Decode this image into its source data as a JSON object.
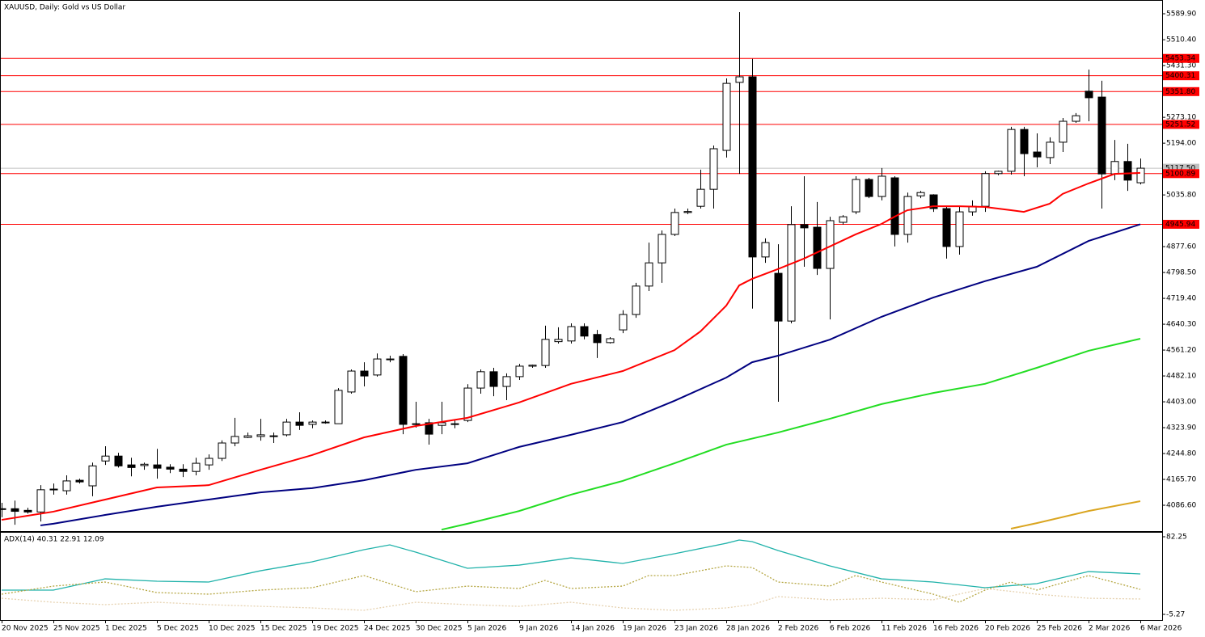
{
  "chart_data": [
    {
      "type": "candlestick",
      "title": "XAUUSD, Daily:  Gold vs US Dollar",
      "categories": [
        "20 Nov 2025",
        null,
        null,
        null,
        "25 Nov 2025",
        null,
        null,
        null,
        "1 Dec 2025",
        null,
        null,
        null,
        "5 Dec 2025",
        null,
        null,
        null,
        "10 Dec 2025",
        null,
        null,
        null,
        "15 Dec 2025",
        null,
        null,
        null,
        "19 Dec 2025",
        null,
        null,
        null,
        "24 Dec 2025",
        null,
        null,
        null,
        "30 Dec 2025",
        null,
        null,
        null,
        "5 Jan 2026",
        null,
        null,
        null,
        "9 Jan 2026",
        null,
        null,
        null,
        "14 Jan 2026",
        null,
        null,
        null,
        "19 Jan 2026",
        null,
        null,
        null,
        "23 Jan 2026",
        null,
        null,
        null,
        "28 Jan 2026",
        null,
        null,
        null,
        "2 Feb 2026",
        null,
        null,
        null,
        "6 Feb 2026",
        null,
        null,
        null,
        "11 Feb 2026",
        null,
        null,
        null,
        "16 Feb 2026",
        null,
        null,
        null,
        "20 Feb 2026",
        null,
        null,
        null,
        "25 Feb 2026",
        null,
        null,
        null,
        "2 Mar 2026",
        null,
        null,
        null,
        "6 Mar 2026"
      ],
      "open": [
        4074,
        4076,
        4071,
        4066,
        4134,
        4131,
        4163,
        4146,
        4222,
        4237,
        4210,
        4208,
        4210,
        4203,
        4197,
        4190,
        4210,
        4230,
        4277,
        4294,
        4297,
        4297,
        4302,
        4341,
        4334,
        4339,
        4336,
        4433,
        4497,
        4485,
        4534,
        4542,
        4334,
        4339,
        4331,
        4334,
        4346,
        4445,
        4495,
        4450,
        4480,
        4512,
        4514,
        4587,
        4589,
        4633,
        4609,
        4584,
        4623,
        4670,
        4757,
        4828,
        4915,
        4982,
        5001,
        5053,
        5172,
        5380,
        5397,
        4846,
        4796,
        4650,
        4945,
        4937,
        4811,
        4952,
        4984,
        5083,
        5031,
        5088,
        4915,
        5033,
        5036,
        4994,
        4878,
        4984,
        5001,
        5101,
        5108,
        5236,
        5167,
        5150,
        5197,
        5261,
        5353,
        5335,
        5100,
        5138,
        5073
      ],
      "high": [
        4094,
        4101,
        4079,
        4148,
        4153,
        4178,
        4168,
        4217,
        4267,
        4247,
        4232,
        4217,
        4259,
        4212,
        4212,
        4232,
        4242,
        4285,
        4354,
        4309,
        4351,
        4309,
        4351,
        4371,
        4346,
        4346,
        4445,
        4502,
        4524,
        4551,
        4544,
        4549,
        4403,
        4351,
        4403,
        4346,
        4457,
        4502,
        4507,
        4490,
        4519,
        4517,
        4636,
        4631,
        4643,
        4643,
        4623,
        4601,
        4683,
        4767,
        4890,
        4927,
        4994,
        4994,
        5113,
        5187,
        5392,
        5595,
        5452,
        4903,
        4885,
        5001,
        5093,
        5014,
        4969,
        4974,
        5093,
        5088,
        5118,
        5093,
        5043,
        5048,
        5038,
        5001,
        5001,
        5019,
        5108,
        5110,
        5244,
        5244,
        5224,
        5212,
        5271,
        5286,
        5419,
        5385,
        5204,
        5192,
        5147
      ],
      "low": [
        4050,
        4027,
        4061,
        4037,
        4119,
        4119,
        4153,
        4114,
        4210,
        4202,
        4175,
        4195,
        4168,
        4185,
        4173,
        4178,
        4195,
        4222,
        4267,
        4292,
        4284,
        4277,
        4297,
        4317,
        4322,
        4336,
        4336,
        4428,
        4450,
        4480,
        4524,
        4304,
        4324,
        4272,
        4304,
        4322,
        4341,
        4428,
        4420,
        4408,
        4470,
        4507,
        4507,
        4581,
        4581,
        4594,
        4537,
        4581,
        4613,
        4660,
        4742,
        4767,
        4910,
        4977,
        4994,
        4994,
        5150,
        5100,
        4688,
        4828,
        4403,
        4643,
        4816,
        4791,
        4655,
        4945,
        4977,
        5026,
        5019,
        4878,
        4890,
        5026,
        4984,
        4841,
        4853,
        4972,
        4984,
        5096,
        5098,
        5093,
        5120,
        5130,
        5167,
        5256,
        5261,
        4994,
        5081,
        5048,
        5068
      ],
      "close": [
        4076,
        4068,
        4066,
        4134,
        4136,
        4161,
        4158,
        4207,
        4237,
        4207,
        4202,
        4212,
        4200,
        4197,
        4190,
        4215,
        4230,
        4277,
        4297,
        4299,
        4302,
        4299,
        4341,
        4331,
        4341,
        4341,
        4438,
        4497,
        4482,
        4534,
        4532,
        4334,
        4336,
        4304,
        4339,
        4336,
        4445,
        4495,
        4450,
        4480,
        4512,
        4515,
        4594,
        4594,
        4633,
        4604,
        4584,
        4596,
        4670,
        4757,
        4828,
        4915,
        4982,
        4985,
        5053,
        5177,
        5377,
        5397,
        4846,
        4890,
        4650,
        4945,
        4935,
        4811,
        4957,
        4969,
        5083,
        5031,
        5093,
        4915,
        5031,
        5043,
        4994,
        4878,
        4984,
        5001,
        5101,
        5108,
        5236,
        5162,
        5152,
        5197,
        5261,
        5278,
        5333,
        5100,
        5138,
        5081,
        5117.5
      ],
      "up_color": "#ffffff",
      "down_color": "#000000",
      "ylim": [
        4010,
        5627
      ],
      "yticks": [
        {
          "value": 5589.9,
          "label": "5589.90"
        },
        {
          "value": 5510.4,
          "label": "5510.40"
        },
        {
          "value": 5431.3,
          "label": "5431.30"
        },
        {
          "value": 5273.1,
          "label": "5273.10"
        },
        {
          "value": 5194,
          "label": "5194.00"
        },
        {
          "value": 5035.8,
          "label": "5035.80"
        },
        {
          "value": 4877.6,
          "label": "4877.60"
        },
        {
          "value": 4798.5,
          "label": "4798.50"
        },
        {
          "value": 4719.4,
          "label": "4719.40"
        },
        {
          "value": 4640.3,
          "label": "4640.30"
        },
        {
          "value": 4561.2,
          "label": "4561.20"
        },
        {
          "value": 4482.1,
          "label": "4482.10"
        },
        {
          "value": 4403,
          "label": "4403.00"
        },
        {
          "value": 4323.9,
          "label": "4323.90"
        },
        {
          "value": 4244.8,
          "label": "4244.80"
        },
        {
          "value": 4165.7,
          "label": "4165.70"
        },
        {
          "value": 4086.6,
          "label": "4086.60"
        }
      ],
      "levels": [
        5453.34,
        5400.31,
        {
          "value": 5351.8,
          "label": "5351.80"
        },
        5251.52,
        5100.89,
        4945.94
      ],
      "level_color": "#ff0000",
      "current_price": {
        "value": 5117.5,
        "label": "5117.50"
      },
      "series": [
        {
          "color": "#ff0000",
          "x": [
            0,
            4,
            8,
            12,
            16,
            20,
            24,
            28,
            32,
            36,
            40,
            44,
            48,
            52,
            54,
            56,
            57,
            58,
            60,
            62,
            64,
            66,
            68,
            69,
            70,
            72,
            74,
            76,
            78,
            79,
            81,
            82,
            84,
            86,
            88
          ],
          "values": [
            4042,
            4067,
            4104,
            4141,
            4148,
            4195,
            4240,
            4294,
            4329,
            4354,
            4401,
            4458,
            4497,
            4561,
            4618,
            4697,
            4759,
            4779,
            4809,
            4841,
            4878,
            4915,
            4947,
            4969,
            4989,
            5001,
            5001,
            4999,
            4989,
            4984,
            5009,
            5039,
            5071,
            5100,
            5103
          ]
        },
        {
          "color": "#000080",
          "x": [
            3,
            4,
            8,
            12,
            16,
            20,
            24,
            28,
            32,
            36,
            40,
            44,
            48,
            52,
            56,
            58,
            60,
            64,
            68,
            72,
            76,
            80,
            84,
            88
          ],
          "values": [
            4025,
            4030,
            4057,
            4082,
            4104,
            4126,
            4139,
            4163,
            4195,
            4215,
            4265,
            4302,
            4341,
            4406,
            4477,
            4524,
            4544,
            4593,
            4663,
            4722,
            4772,
            4816,
            4895,
            4946
          ]
        },
        {
          "color": "#22dd22",
          "x": [
            34,
            36,
            40,
            44,
            48,
            52,
            56,
            60,
            64,
            68,
            72,
            76,
            80,
            84,
            88
          ],
          "values": [
            4012,
            4030,
            4069,
            4119,
            4161,
            4215,
            4272,
            4309,
            4351,
            4396,
            4430,
            4458,
            4507,
            4559,
            4596
          ]
        },
        {
          "color": "#daa520",
          "x": [
            78,
            80,
            84,
            88
          ],
          "values": [
            4015,
            4032,
            4069,
            4099
          ]
        }
      ]
    },
    {
      "type": "line",
      "title": "ADX(14) 40.31 22.91 12.09",
      "ylim": [
        -11.65,
        87.72
      ],
      "yticks": [
        82.25,
        -5.27
      ],
      "series": [
        {
          "color": "#20b2aa",
          "dash": "none",
          "x": [
            0,
            4,
            8,
            12,
            16,
            20,
            24,
            28,
            30,
            32,
            36,
            40,
            44,
            48,
            52,
            56,
            57,
            58,
            60,
            64,
            68,
            72,
            76,
            80,
            84,
            88
          ],
          "values": [
            22.1,
            22.1,
            34.8,
            32.1,
            31.2,
            43.9,
            54.0,
            67.7,
            73.1,
            64.9,
            46.7,
            50.3,
            58.5,
            52.2,
            63.1,
            74.9,
            78.6,
            76.8,
            66.8,
            49.4,
            34.8,
            31.2,
            24.8,
            29.4,
            43.0,
            40.31
          ]
        },
        {
          "color": "#b5a642",
          "dash": "2 2",
          "x": [
            0,
            4,
            8,
            12,
            16,
            20,
            24,
            28,
            32,
            36,
            40,
            42,
            44,
            48,
            50,
            52,
            56,
            58,
            60,
            64,
            66,
            68,
            72,
            74,
            76,
            78,
            80,
            84,
            88
          ],
          "values": [
            17.5,
            26.6,
            31.2,
            19.3,
            17.5,
            22.1,
            24.8,
            38.5,
            20.3,
            26.6,
            23.9,
            33.0,
            23.9,
            26.6,
            38.5,
            38.5,
            49.4,
            47.6,
            31.2,
            26.6,
            38.5,
            31.2,
            17.5,
            8.4,
            22.1,
            31.2,
            22.1,
            38.5,
            22.91
          ]
        },
        {
          "color": "#e6d2b0",
          "dash": "2 2",
          "x": [
            0,
            4,
            8,
            12,
            16,
            20,
            24,
            28,
            32,
            36,
            40,
            44,
            48,
            52,
            56,
            58,
            60,
            64,
            68,
            72,
            76,
            80,
            84,
            88
          ],
          "values": [
            12.9,
            8.4,
            5.7,
            8.4,
            5.7,
            3.8,
            2.0,
            -0.7,
            8.4,
            5.7,
            3.8,
            8.4,
            2.0,
            -0.7,
            2.0,
            5.7,
            14.8,
            11.2,
            12.9,
            11.2,
            23.9,
            17.5,
            12.9,
            12.09
          ]
        }
      ]
    }
  ]
}
